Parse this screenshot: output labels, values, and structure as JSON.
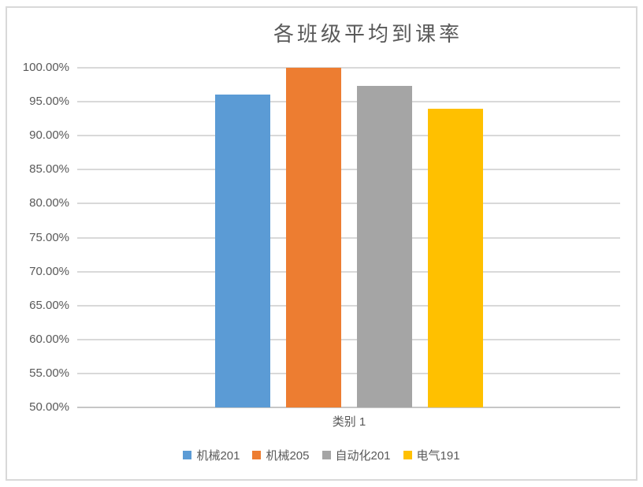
{
  "chart_data": {
    "type": "bar",
    "title": "各班级平均到课率",
    "categories": [
      "类别 1"
    ],
    "series": [
      {
        "name": "机械201",
        "values": [
          96.0
        ],
        "color": "#5B9BD5"
      },
      {
        "name": "机械205",
        "values": [
          100.0
        ],
        "color": "#ED7D31"
      },
      {
        "name": "自动化201",
        "values": [
          97.3
        ],
        "color": "#A5A5A5"
      },
      {
        "name": "电气191",
        "values": [
          94.0
        ],
        "color": "#FFC000"
      }
    ],
    "y_axis": {
      "min": 50,
      "max": 100,
      "step": 5,
      "format": "0.00%"
    },
    "y_tick_labels": [
      "100.00%",
      "95.00%",
      "90.00%",
      "85.00%",
      "80.00%",
      "75.00%",
      "70.00%",
      "65.00%",
      "60.00%",
      "55.00%",
      "50.00%"
    ],
    "xlabel": "",
    "ylabel": "",
    "grid": true,
    "legend_position": "bottom",
    "colors": {
      "text": "#595959",
      "gridline": "#D9D9D9",
      "axis_line": "#C6C6C6",
      "border": "#D9D9D9",
      "background": "#FFFFFF"
    }
  }
}
